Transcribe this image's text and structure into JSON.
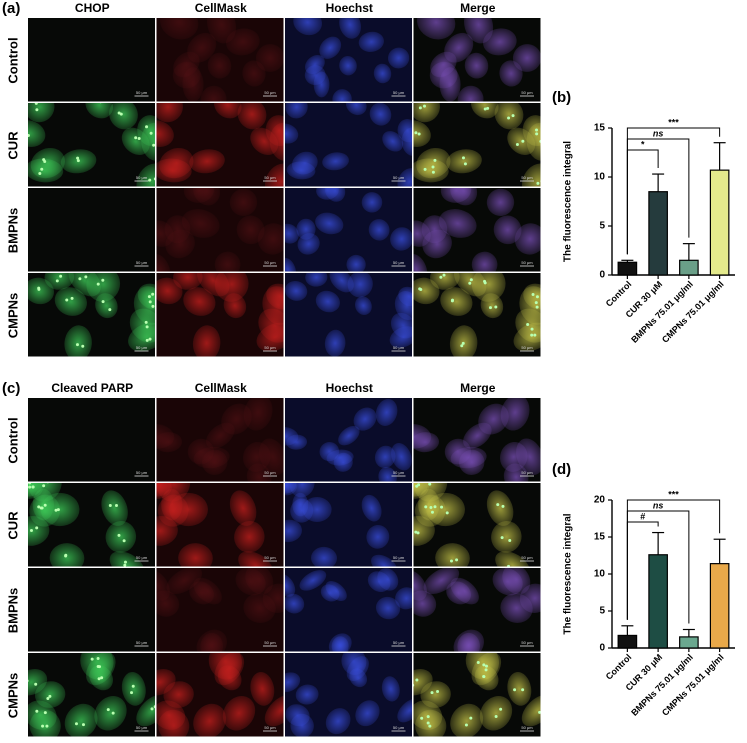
{
  "panels": [
    {
      "label": "(a)",
      "columns": [
        "CHOP",
        "CellMask",
        "Hoechst",
        "Merge"
      ],
      "rows": [
        "Control",
        "CUR",
        "BMPNs",
        "CMPNs"
      ],
      "scale_bar": "50 μm"
    },
    {
      "label": "(c)",
      "columns": [
        "Cleaved PARP",
        "CellMask",
        "Hoechst",
        "Merge"
      ],
      "rows": [
        "Control",
        "CUR",
        "BMPNs",
        "CMPNs"
      ],
      "scale_bar": "50 μm"
    }
  ],
  "chart_data": [
    {
      "type": "bar",
      "label": "(b)",
      "ylabel": "The fluorescence integral",
      "categories": [
        "Control",
        "CUR 30 μM",
        "BMPNs 75.01 μg/ml",
        "CMPNs 75.01 μg/ml"
      ],
      "values": [
        1.3,
        8.5,
        1.5,
        10.7
      ],
      "errors": [
        0.2,
        1.8,
        1.7,
        2.8
      ],
      "colors": [
        "#111111",
        "#253b3d",
        "#6a9f88",
        "#e4ea8c"
      ],
      "ylim": [
        0,
        15
      ],
      "yticks": [
        0,
        5,
        10,
        15
      ],
      "comparisons": [
        {
          "groups": [
            "Control",
            "CUR 30 μM"
          ],
          "label": "*"
        },
        {
          "groups": [
            "Control",
            "BMPNs 75.01 μg/ml"
          ],
          "label": "ns"
        },
        {
          "groups": [
            "Control",
            "CMPNs 75.01 μg/ml"
          ],
          "label": "***"
        }
      ]
    },
    {
      "type": "bar",
      "label": "(d)",
      "ylabel": "The fluorescence integral",
      "categories": [
        "Control",
        "CUR 30 μM",
        "BMPNs 75.01 μg/ml",
        "CMPNs 75.01 μg/ml"
      ],
      "values": [
        1.7,
        12.6,
        1.5,
        11.4
      ],
      "errors": [
        1.3,
        3.0,
        1.0,
        3.3
      ],
      "colors": [
        "#111111",
        "#1e4d44",
        "#6aa88f",
        "#e9a94a"
      ],
      "ylim": [
        0,
        20
      ],
      "yticks": [
        0,
        5,
        10,
        15,
        20
      ],
      "comparisons": [
        {
          "groups": [
            "Control",
            "CUR 30 μM"
          ],
          "label": "#"
        },
        {
          "groups": [
            "Control",
            "BMPNs 75.01 μg/ml"
          ],
          "label": "ns"
        },
        {
          "groups": [
            "Control",
            "CMPNs 75.01 μg/ml"
          ],
          "label": "***"
        }
      ]
    }
  ]
}
